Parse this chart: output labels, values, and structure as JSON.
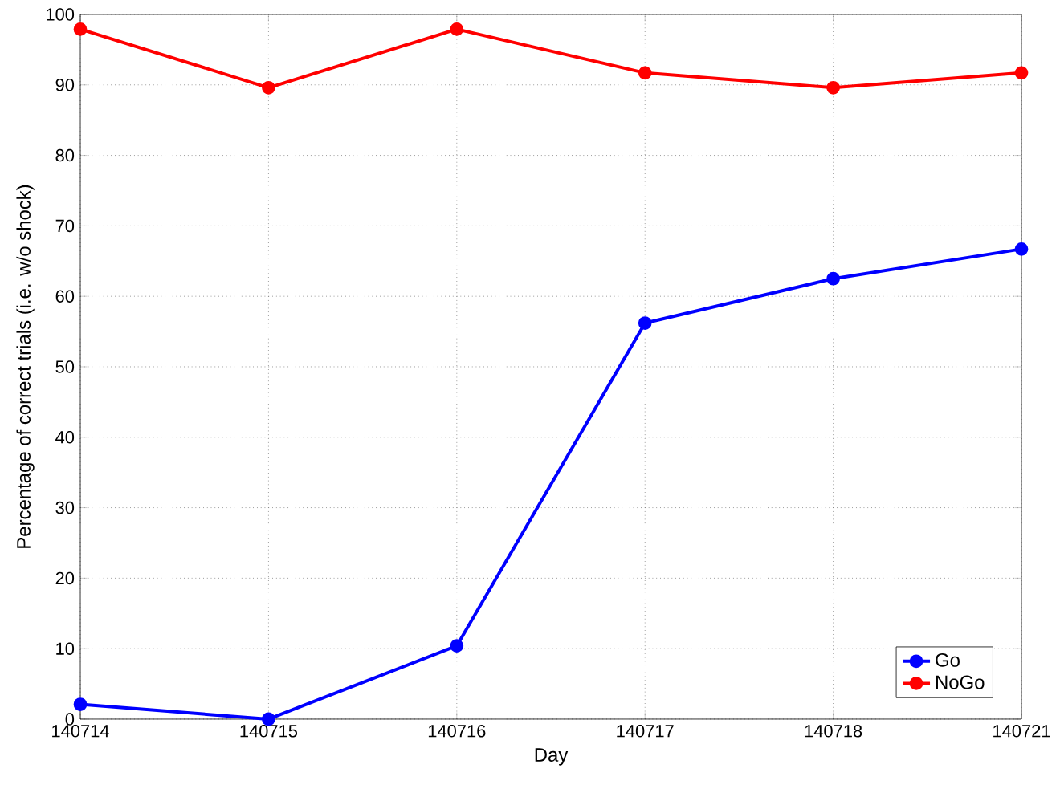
{
  "chart_data": {
    "type": "line",
    "xlabel": "Day",
    "ylabel": "Percentage of correct trials (i.e. w/o shock)",
    "categories": [
      "140714",
      "140715",
      "140716",
      "140717",
      "140718",
      "140721"
    ],
    "series": [
      {
        "name": "Go",
        "color": "#0000ff",
        "values": [
          2.1,
          0,
          10.4,
          56.2,
          62.5,
          66.7
        ]
      },
      {
        "name": "NoGo",
        "color": "#ff0000",
        "values": [
          97.9,
          89.6,
          97.9,
          91.7,
          89.6,
          91.7
        ]
      }
    ],
    "ylim": [
      0,
      100
    ],
    "yticks": [
      0,
      10,
      20,
      30,
      40,
      50,
      60,
      70,
      80,
      90,
      100
    ],
    "grid": true,
    "legend": "bottom right",
    "marker": "circle",
    "line_style": "solid"
  }
}
